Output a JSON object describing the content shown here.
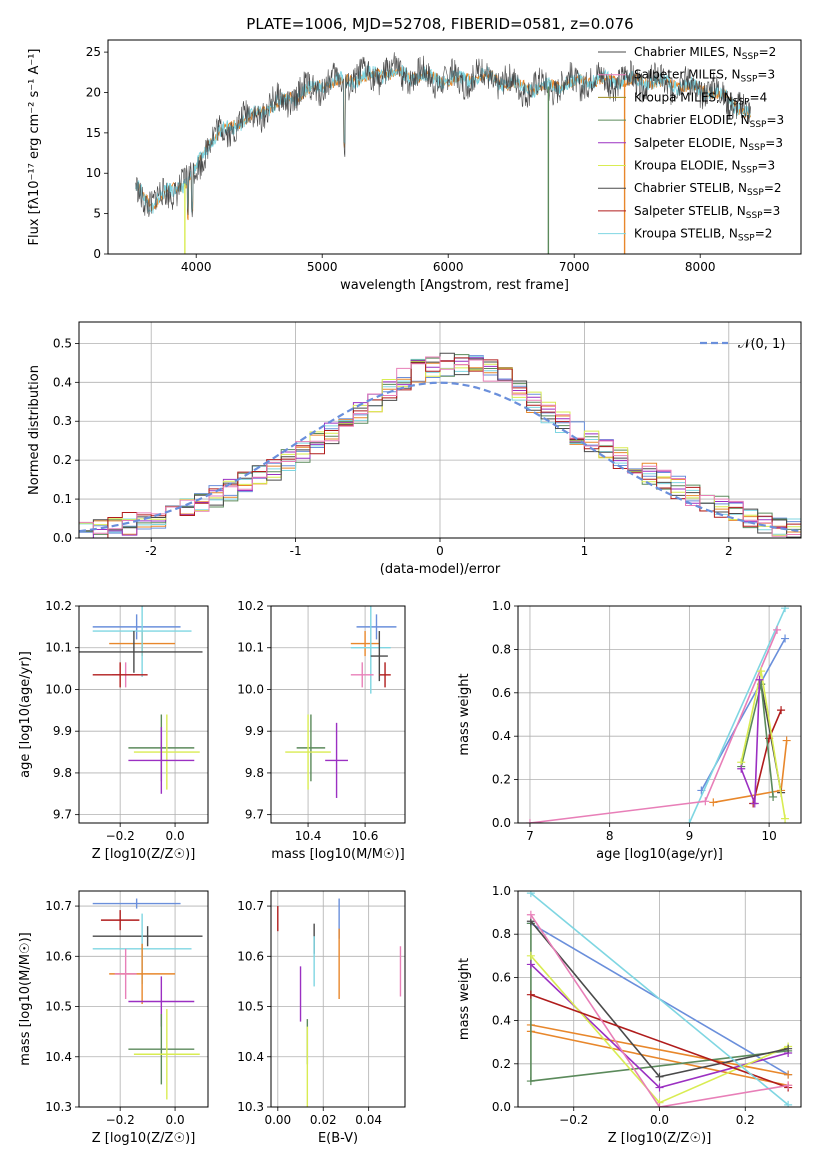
{
  "figure_title": "PLATE=1006, MJD=52708, FIBERID=0581, z=0.076",
  "colors": {
    "Chabrier MILES": "#6a8fdb",
    "Salpeter MILES": "#e8872b",
    "Kroupa MILES": "#e8872b",
    "Chabrier ELODIE": "#5b8a5b",
    "Salpeter ELODIE": "#9b30c2",
    "Kroupa ELODIE": "#d9ec52",
    "Chabrier STELIB": "#4a4a4a",
    "Salpeter STELIB": "#b01c1c",
    "Kroupa STELIB": "#7fd6e2",
    "extra_pink": "#e87fb8"
  },
  "chart_data": [
    {
      "type": "line",
      "panel": "spectrum",
      "title": "PLATE=1006, MJD=52708, FIBERID=0581, z=0.076",
      "xlabel": "wavelength [Angstrom, rest frame]",
      "ylabel": "Flux [fλ10⁻¹⁷ erg cm⁻² s⁻¹ A⁻¹]",
      "xlim": [
        3300,
        8800
      ],
      "ylim": [
        0,
        26.5
      ],
      "xticks": [
        4000,
        5000,
        6000,
        7000,
        8000
      ],
      "yticks": [
        0,
        5,
        10,
        15,
        20,
        25
      ],
      "grid": false,
      "legend_position": "right",
      "legend": [
        {
          "label": "Chabrier MILES, N",
          "sub": "SSP",
          "suffix": "=2"
        },
        {
          "label": "Salpeter MILES, N",
          "sub": "SSP",
          "suffix": "=3"
        },
        {
          "label": "Kroupa MILES, N",
          "sub": "SSP",
          "suffix": "=4"
        },
        {
          "label": "Chabrier ELODIE, N",
          "sub": "SSP",
          "suffix": "=3"
        },
        {
          "label": "Salpeter ELODIE, N",
          "sub": "SSP",
          "suffix": "=3"
        },
        {
          "label": "Kroupa ELODIE, N",
          "sub": "SSP",
          "suffix": "=3"
        },
        {
          "label": "Chabrier STELIB, N",
          "sub": "SSP",
          "suffix": "=2"
        },
        {
          "label": "Salpeter STELIB, N",
          "sub": "SSP",
          "suffix": "=3"
        },
        {
          "label": "Kroupa STELIB, N",
          "sub": "SSP",
          "suffix": "=2"
        }
      ],
      "continuum": {
        "x": [
          3520,
          3650,
          3800,
          3950,
          4100,
          4300,
          4500,
          4700,
          5000,
          5200,
          5500,
          5800,
          6000,
          6300,
          6500,
          6700,
          6900,
          7100,
          7300,
          7500,
          7800,
          8000,
          8200,
          8400
        ],
        "y": [
          8.5,
          6.0,
          8.0,
          9.0,
          14.0,
          16.0,
          17.5,
          19.0,
          21.0,
          21.5,
          22.5,
          22.0,
          21.5,
          22.0,
          21.0,
          20.5,
          21.0,
          21.5,
          21.5,
          21.5,
          21.0,
          20.5,
          19.5,
          17.0
        ]
      }
    },
    {
      "type": "step",
      "panel": "residual-histogram",
      "xlabel": "(data-model)/error",
      "ylabel": "Normed distribution",
      "xlim": [
        -2.5,
        2.5
      ],
      "ylim": [
        0,
        0.555
      ],
      "xticks": [
        -2,
        -1,
        0,
        1,
        2
      ],
      "yticks": [
        0.0,
        0.1,
        0.2,
        0.3,
        0.4,
        0.5
      ],
      "grid": true,
      "legend": [
        {
          "label": "𝒩(0, 1)",
          "style": "dashed"
        }
      ],
      "bin_edges": [
        -2.5,
        -2.4,
        -2.3,
        -2.2,
        -2.1,
        -2.0,
        -1.9,
        -1.8,
        -1.7,
        -1.6,
        -1.5,
        -1.4,
        -1.3,
        -1.2,
        -1.1,
        -1.0,
        -0.9,
        -0.8,
        -0.7,
        -0.6,
        -0.5,
        -0.4,
        -0.3,
        -0.2,
        -0.1,
        0.0,
        0.1,
        0.2,
        0.3,
        0.4,
        0.5,
        0.6,
        0.7,
        0.8,
        0.9,
        1.0,
        1.1,
        1.2,
        1.3,
        1.4,
        1.5,
        1.6,
        1.7,
        1.8,
        1.9,
        2.0,
        2.1,
        2.2,
        2.3,
        2.4,
        2.5
      ],
      "base_density": [
        0.018,
        0.024,
        0.03,
        0.036,
        0.044,
        0.054,
        0.066,
        0.078,
        0.092,
        0.106,
        0.122,
        0.14,
        0.158,
        0.178,
        0.198,
        0.22,
        0.244,
        0.268,
        0.292,
        0.32,
        0.35,
        0.38,
        0.41,
        0.43,
        0.44,
        0.445,
        0.445,
        0.44,
        0.43,
        0.41,
        0.38,
        0.35,
        0.32,
        0.295,
        0.27,
        0.248,
        0.226,
        0.206,
        0.186,
        0.166,
        0.148,
        0.13,
        0.112,
        0.096,
        0.08,
        0.066,
        0.054,
        0.042,
        0.032,
        0.022
      ],
      "gaussian": {
        "mean": 0,
        "sigma": 1
      }
    },
    {
      "type": "scatter",
      "panel": "age-vs-Z",
      "xlabel": "Z [log10(Z/Z☉)]",
      "ylabel": "age  [log10(age/yr)]",
      "xlim": [
        -0.35,
        0.12
      ],
      "ylim": [
        9.68,
        10.2
      ],
      "xticks": [
        -0.2,
        0.0
      ],
      "xticklabels": [
        "−0.2",
        "0.0"
      ],
      "yticks": [
        9.7,
        9.8,
        9.9,
        10.0,
        10.1,
        10.2
      ],
      "grid": true,
      "points": [
        {
          "series": "Chabrier MILES",
          "x": -0.14,
          "xerr": 0.16,
          "y": 10.15,
          "yerr": 0.03
        },
        {
          "series": "Salpeter MILES",
          "x": -0.12,
          "xerr": 0.12,
          "y": 10.11,
          "yerr": 0.03
        },
        {
          "series": "Kroupa STELIB",
          "x": -0.12,
          "xerr": 0.18,
          "y": 10.14,
          "yerr": 0.11
        },
        {
          "series": "Chabrier STELIB",
          "x": -0.15,
          "xerr": 0.25,
          "y": 10.09,
          "yerr": 0.05
        },
        {
          "series": "extra_pink",
          "x": -0.18,
          "xerr": 0.05,
          "y": 10.035,
          "yerr": 0.03
        },
        {
          "series": "Salpeter STELIB",
          "x": -0.2,
          "xerr": 0.1,
          "y": 10.035,
          "yerr": 0.03
        },
        {
          "series": "Chabrier ELODIE",
          "x": -0.05,
          "xerr": 0.12,
          "y": 9.86,
          "yerr": 0.08
        },
        {
          "series": "Kroupa ELODIE",
          "x": -0.03,
          "xerr": 0.12,
          "y": 9.85,
          "yerr": 0.09
        },
        {
          "series": "Salpeter ELODIE",
          "x": -0.05,
          "xerr": 0.12,
          "y": 9.83,
          "yerr": 0.08
        }
      ]
    },
    {
      "type": "scatter",
      "panel": "age-vs-mass",
      "xlabel": "mass [log10(M/M☉)]",
      "ylabel": "",
      "xlim": [
        10.27,
        10.74
      ],
      "ylim": [
        9.68,
        10.2
      ],
      "xticks": [
        10.4,
        10.6
      ],
      "yticks": [
        9.7,
        9.8,
        9.9,
        10.0,
        10.1,
        10.2
      ],
      "grid": true,
      "points": [
        {
          "series": "Chabrier MILES",
          "x": 10.64,
          "xerr": 0.07,
          "y": 10.15,
          "yerr": 0.03
        },
        {
          "series": "Salpeter MILES",
          "x": 10.6,
          "xerr": 0.05,
          "y": 10.11,
          "yerr": 0.03
        },
        {
          "series": "Kroupa STELIB",
          "x": 10.62,
          "xerr": 0.07,
          "y": 10.1,
          "yerr": 0.11
        },
        {
          "series": "Chabrier STELIB",
          "x": 10.65,
          "xerr": 0.03,
          "y": 10.08,
          "yerr": 0.06
        },
        {
          "series": "extra_pink",
          "x": 10.59,
          "xerr": 0.04,
          "y": 10.035,
          "yerr": 0.03
        },
        {
          "series": "Salpeter STELIB",
          "x": 10.67,
          "xerr": 0.02,
          "y": 10.035,
          "yerr": 0.03
        },
        {
          "series": "Chabrier ELODIE",
          "x": 10.41,
          "xerr": 0.05,
          "y": 9.86,
          "yerr": 0.08
        },
        {
          "series": "Kroupa ELODIE",
          "x": 10.4,
          "xerr": 0.08,
          "y": 9.85,
          "yerr": 0.09
        },
        {
          "series": "Salpeter ELODIE",
          "x": 10.5,
          "xerr": 0.04,
          "y": 9.83,
          "yerr": 0.09
        }
      ]
    },
    {
      "type": "line",
      "panel": "mass-weight-vs-age",
      "xlabel": "age  [log10(age/yr)]",
      "ylabel": "mass weight",
      "xlim": [
        6.85,
        10.4
      ],
      "ylim": [
        0,
        1.0
      ],
      "xticks": [
        7,
        8,
        9,
        10
      ],
      "yticks": [
        0.0,
        0.2,
        0.4,
        0.6,
        0.8,
        1.0
      ],
      "grid": true,
      "series": [
        {
          "name": "Chabrier MILES",
          "x": [
            9.15,
            10.2
          ],
          "y": [
            0.15,
            0.85
          ]
        },
        {
          "name": "Salpeter MILES",
          "x": [
            9.3,
            10.15,
            10.22
          ],
          "y": [
            0.095,
            0.15,
            0.38
          ]
        },
        {
          "name": "Kroupa STELIB",
          "x": [
            9.0,
            10.2
          ],
          "y": [
            0.0,
            0.99
          ]
        },
        {
          "name": "extra_pink",
          "x": [
            7.0,
            9.2,
            10.1
          ],
          "y": [
            0.0,
            0.1,
            0.89
          ]
        },
        {
          "name": "Chabrier STELIB",
          "x": [
            9.9,
            10.15
          ],
          "y": [
            0.64,
            0.14
          ]
        },
        {
          "name": "Salpeter STELIB",
          "x": [
            9.8,
            10.0,
            10.15
          ],
          "y": [
            0.09,
            0.39,
            0.52
          ]
        },
        {
          "name": "Chabrier ELODIE",
          "x": [
            9.65,
            9.9,
            10.05
          ],
          "y": [
            0.26,
            0.64,
            0.12
          ]
        },
        {
          "name": "Kroupa ELODIE",
          "x": [
            9.65,
            9.9,
            10.2
          ],
          "y": [
            0.28,
            0.7,
            0.02
          ]
        },
        {
          "name": "Salpeter ELODIE",
          "x": [
            9.65,
            9.82,
            9.88
          ],
          "y": [
            0.25,
            0.09,
            0.66
          ]
        }
      ]
    },
    {
      "type": "scatter",
      "panel": "mass-vs-Z",
      "xlabel": "Z [log10(Z/Z☉)]",
      "ylabel": "mass [log10(M/M☉)]",
      "xlim": [
        -0.35,
        0.12
      ],
      "ylim": [
        10.3,
        10.73
      ],
      "xticks": [
        -0.2,
        0.0
      ],
      "xticklabels": [
        "−0.2",
        "0.0"
      ],
      "yticks": [
        10.3,
        10.4,
        10.5,
        10.6,
        10.7
      ],
      "grid": true,
      "points": [
        {
          "series": "Chabrier MILES",
          "x": -0.14,
          "xerr": 0.16,
          "y": 10.705,
          "yerr": 0.01
        },
        {
          "series": "Salpeter STELIB",
          "x": -0.2,
          "xerr": 0.07,
          "y": 10.672,
          "yerr": 0.02
        },
        {
          "series": "Chabrier STELIB",
          "x": -0.1,
          "xerr": 0.2,
          "y": 10.64,
          "yerr": 0.02
        },
        {
          "series": "Kroupa STELIB",
          "x": -0.12,
          "xerr": 0.18,
          "y": 10.615,
          "yerr": 0.07
        },
        {
          "series": "Salpeter MILES",
          "x": -0.12,
          "xerr": 0.12,
          "y": 10.565,
          "yerr": 0.06
        },
        {
          "series": "extra_pink",
          "x": -0.18,
          "xerr": 0.04,
          "y": 10.565,
          "yerr": 0.05
        },
        {
          "series": "Salpeter ELODIE",
          "x": -0.05,
          "xerr": 0.12,
          "y": 10.51,
          "yerr": 0.05
        },
        {
          "series": "Chabrier ELODIE",
          "x": -0.05,
          "xerr": 0.12,
          "y": 10.415,
          "yerr": 0.07
        },
        {
          "series": "Kroupa ELODIE",
          "x": -0.03,
          "xerr": 0.12,
          "y": 10.405,
          "yerr": 0.09
        }
      ]
    },
    {
      "type": "scatter",
      "panel": "mass-vs-ebv",
      "xlabel": "E(B-V)",
      "ylabel": "",
      "xlim": [
        -0.003,
        0.056
      ],
      "ylim": [
        10.3,
        10.73
      ],
      "xticks": [
        0.0,
        0.02,
        0.04
      ],
      "xticklabels": [
        "0.00",
        "0.02",
        "0.04"
      ],
      "yticks": [
        10.3,
        10.4,
        10.5,
        10.6,
        10.7
      ],
      "grid": true,
      "points": [
        {
          "series": "Salpeter STELIB",
          "x": 0.0,
          "y": 10.675,
          "yerr": 0.025
        },
        {
          "series": "Chabrier MILES",
          "x": 0.027,
          "y": 10.675,
          "yerr": 0.04
        },
        {
          "series": "Salpeter MILES",
          "x": 0.027,
          "y": 10.585,
          "yerr": 0.07
        },
        {
          "series": "Chabrier STELIB",
          "x": 0.016,
          "y": 10.635,
          "yerr": 0.03
        },
        {
          "series": "Kroupa STELIB",
          "x": 0.016,
          "y": 10.59,
          "yerr": 0.05
        },
        {
          "series": "extra_pink",
          "x": 0.054,
          "y": 10.57,
          "yerr": 0.05
        },
        {
          "series": "Salpeter ELODIE",
          "x": 0.01,
          "y": 10.525,
          "yerr": 0.055
        },
        {
          "series": "Chabrier ELODIE",
          "x": 0.013,
          "y": 10.43,
          "yerr": 0.045
        },
        {
          "series": "Kroupa ELODIE",
          "x": 0.013,
          "y": 10.38,
          "yerr": 0.08
        }
      ]
    },
    {
      "type": "line",
      "panel": "mass-weight-vs-Z",
      "xlabel": "Z [log10(Z/Z☉)]",
      "ylabel": "mass weight",
      "xlim": [
        -0.33,
        0.33
      ],
      "ylim": [
        0,
        1.0
      ],
      "xticks": [
        -0.2,
        0.0,
        0.2
      ],
      "xticklabels": [
        "−0.2",
        "0.0",
        "0.2"
      ],
      "yticks": [
        0.0,
        0.2,
        0.4,
        0.6,
        0.8,
        1.0
      ],
      "grid": true,
      "series": [
        {
          "name": "Chabrier MILES",
          "x": [
            -0.3,
            0.3
          ],
          "y": [
            0.85,
            0.15
          ]
        },
        {
          "name": "Salpeter MILES",
          "x": [
            -0.3,
            0.3
          ],
          "y": [
            0.38,
            0.15
          ]
        },
        {
          "name": "Kroupa MILES",
          "x": [
            -0.3,
            0.3
          ],
          "y": [
            0.35,
            0.1
          ]
        },
        {
          "name": "Chabrier ELODIE",
          "x": [
            -0.3,
            -0.3,
            0.3
          ],
          "y": [
            0.85,
            0.12,
            0.26
          ]
        },
        {
          "name": "Salpeter ELODIE",
          "x": [
            -0.3,
            0.0,
            0.3
          ],
          "y": [
            0.66,
            0.09,
            0.25
          ]
        },
        {
          "name": "Kroupa ELODIE",
          "x": [
            -0.3,
            0.0,
            0.3
          ],
          "y": [
            0.7,
            0.02,
            0.28
          ]
        },
        {
          "name": "Chabrier STELIB",
          "x": [
            -0.3,
            0.0,
            0.3
          ],
          "y": [
            0.86,
            0.14,
            0.27
          ]
        },
        {
          "name": "Salpeter STELIB",
          "x": [
            -0.3,
            0.3
          ],
          "y": [
            0.52,
            0.09
          ]
        },
        {
          "name": "Kroupa STELIB",
          "x": [
            -0.3,
            0.3
          ],
          "y": [
            0.99,
            0.01
          ]
        },
        {
          "name": "extra_pink",
          "x": [
            -0.3,
            0.0,
            0.3
          ],
          "y": [
            0.89,
            0.0,
            0.1
          ]
        }
      ]
    }
  ]
}
